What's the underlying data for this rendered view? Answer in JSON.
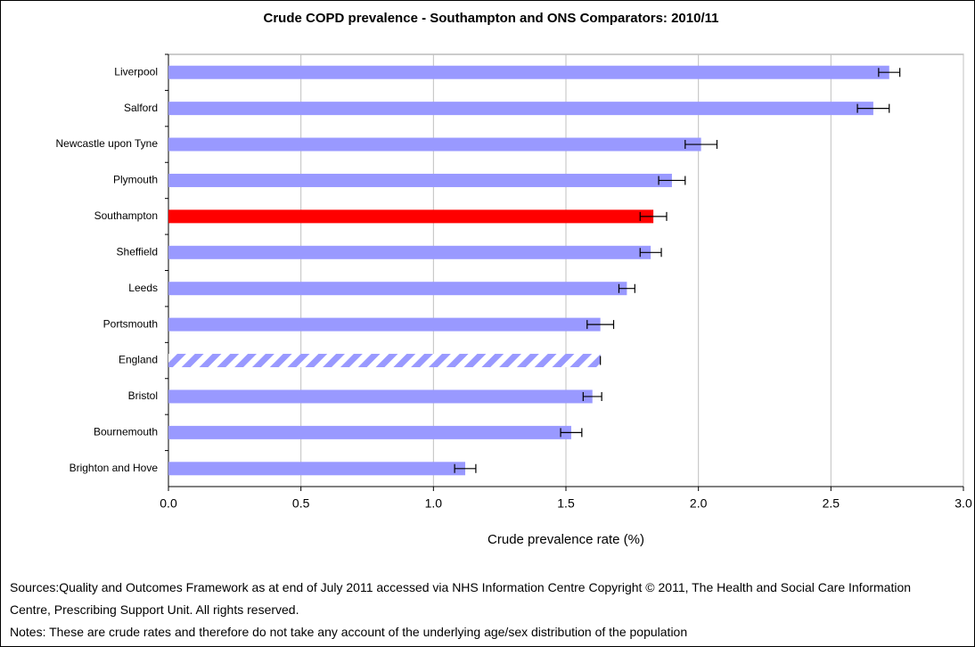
{
  "chart_data": {
    "type": "bar",
    "orientation": "horizontal",
    "title": "Crude COPD prevalence - Southampton and ONS Comparators: 2010/11",
    "x_label": "Crude prevalence rate (%)",
    "categories": [
      "Liverpool",
      "Salford",
      "Newcastle upon Tyne",
      "Plymouth",
      "Southampton",
      "Sheffield",
      "Leeds",
      "Portsmouth",
      "England",
      "Bristol",
      "Bournemouth",
      "Brighton and Hove"
    ],
    "values": [
      2.72,
      2.66,
      2.01,
      1.9,
      1.83,
      1.82,
      1.73,
      1.63,
      1.63,
      1.6,
      1.52,
      1.12
    ],
    "errors": [
      0.04,
      0.06,
      0.06,
      0.05,
      0.05,
      0.04,
      0.03,
      0.05,
      0,
      0.035,
      0.04,
      0.04
    ],
    "bar_colors": [
      "#9999ff",
      "#9999ff",
      "#9999ff",
      "#9999ff",
      "#ff0000",
      "#9999ff",
      "#9999ff",
      "#9999ff",
      "#9999ff",
      "#9999ff",
      "#9999ff",
      "#9999ff"
    ],
    "bar_styles": [
      "solid",
      "solid",
      "solid",
      "solid",
      "solid",
      "solid",
      "solid",
      "solid",
      "hatched",
      "solid",
      "solid",
      "solid"
    ],
    "xlim": [
      0,
      3
    ],
    "xticks": [
      {
        "value": 0,
        "label": "0.0"
      },
      {
        "value": 0.5,
        "label": "0.5"
      },
      {
        "value": 1,
        "label": "1.0"
      },
      {
        "value": 1.5,
        "label": "1.5"
      },
      {
        "value": 2,
        "label": "2.0"
      },
      {
        "value": 2.5,
        "label": "2.5"
      },
      {
        "value": 3,
        "label": "3.0"
      }
    ],
    "grid": true
  },
  "footnotes": {
    "sources": "Sources:Quality and Outcomes Framework as at end of July 2011 accessed via NHS Information Centre Copyright © 2011, The Health and Social Care Information Centre, Prescribing Support Unit. All rights reserved.",
    "notes": "Notes: These are crude rates and therefore do not take any account of the underlying age/sex distribution of the population"
  }
}
